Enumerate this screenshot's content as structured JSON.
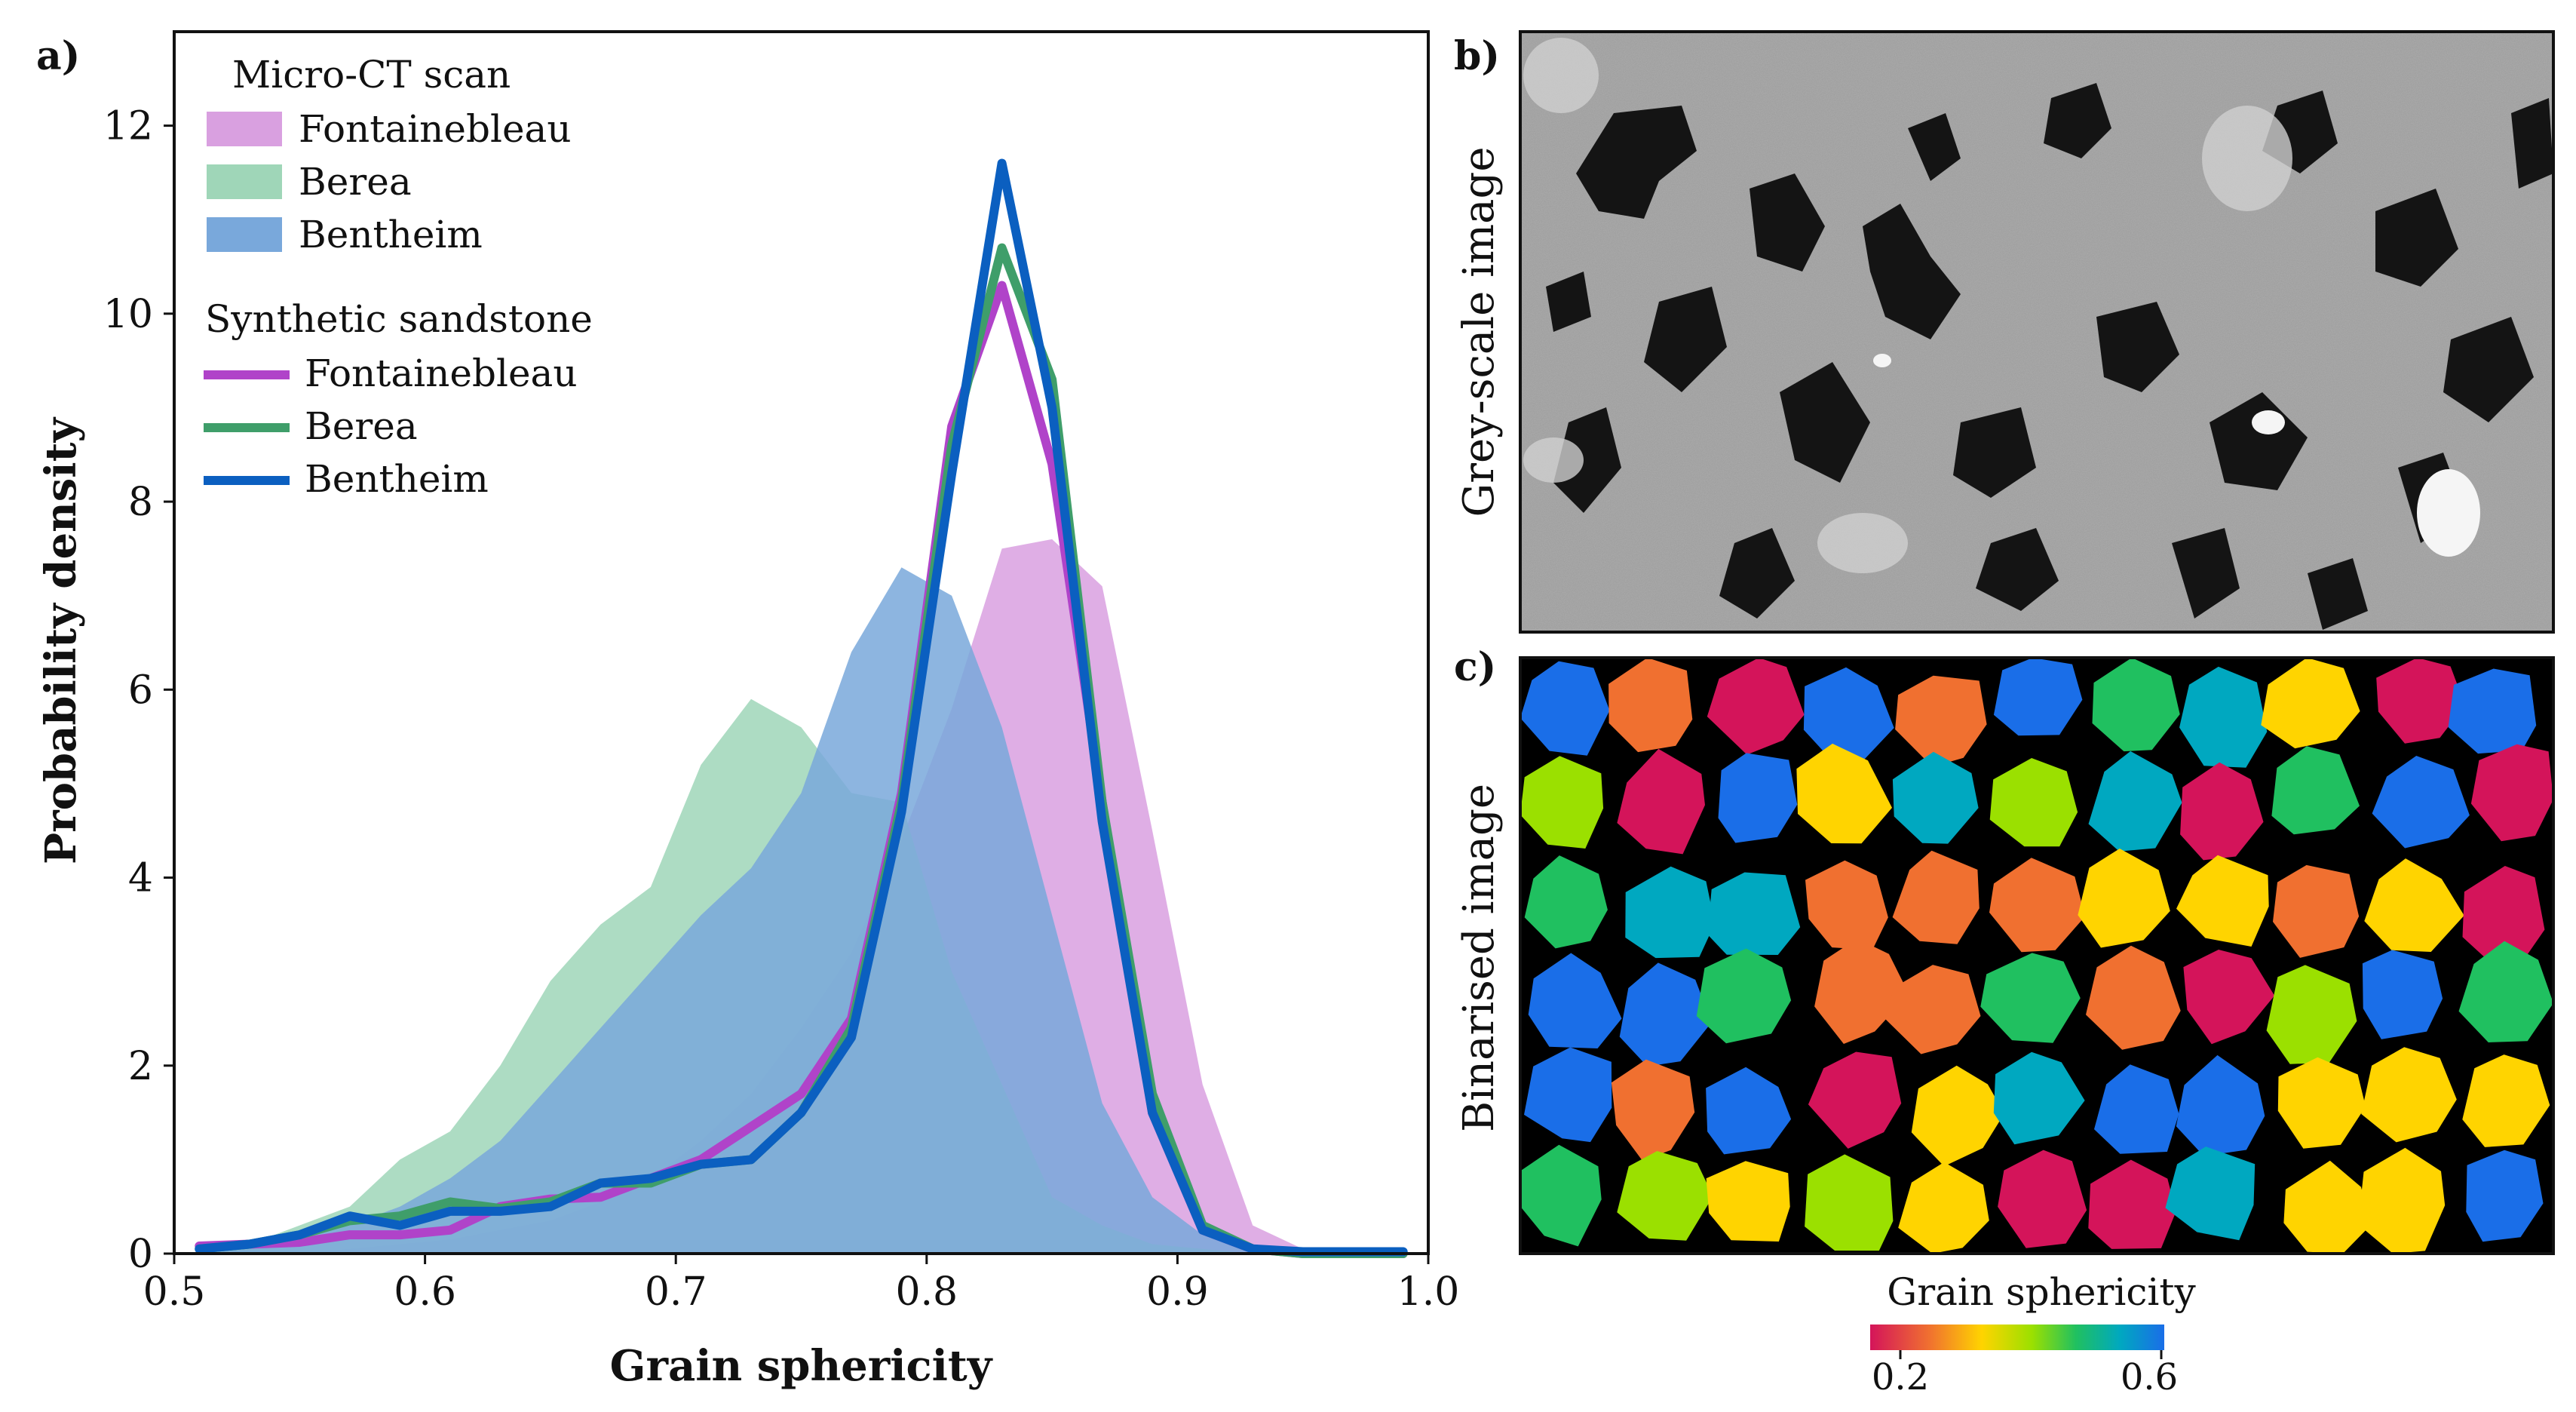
{
  "chart_data": {
    "type": "area",
    "panel_label": "a)",
    "xlabel": "Grain sphericity",
    "ylabel": "Probability density",
    "xlim": [
      0.5,
      1.0
    ],
    "ylim": [
      0,
      13
    ],
    "xticks": [
      "0.5",
      "0.6",
      "0.7",
      "0.8",
      "0.9",
      "1.0"
    ],
    "yticks": [
      "0",
      "2",
      "4",
      "6",
      "8",
      "10",
      "12"
    ],
    "x": [
      0.51,
      0.53,
      0.55,
      0.57,
      0.59,
      0.61,
      0.63,
      0.65,
      0.67,
      0.69,
      0.71,
      0.73,
      0.75,
      0.77,
      0.79,
      0.81,
      0.83,
      0.85,
      0.87,
      0.89,
      0.91,
      0.93,
      0.95,
      0.97,
      0.99
    ],
    "legend": {
      "micro_title": "Micro-CT scan",
      "synthetic_title": "Synthetic sandstone",
      "micro_entries": [
        "Fontainebleau",
        "Berea",
        "Bentheim"
      ],
      "synthetic_entries": [
        "Fontainebleau",
        "Berea",
        "Bentheim"
      ]
    },
    "series": [
      {
        "name": "Fontainebleau",
        "kind": "micro",
        "color": "#d9a0e0",
        "values": [
          0.0,
          0.0,
          0.0,
          0.05,
          0.1,
          0.15,
          0.25,
          0.35,
          0.55,
          0.8,
          1.2,
          1.7,
          2.4,
          3.2,
          4.4,
          5.8,
          7.5,
          7.6,
          7.1,
          4.5,
          1.8,
          0.3,
          0.05,
          0.0,
          0.0
        ]
      },
      {
        "name": "Berea",
        "kind": "micro",
        "color": "#9fd6b8",
        "values": [
          0.05,
          0.1,
          0.3,
          0.5,
          1.0,
          1.3,
          2.0,
          2.9,
          3.5,
          3.9,
          5.2,
          5.9,
          5.6,
          4.9,
          4.8,
          3.0,
          1.8,
          0.6,
          0.3,
          0.1,
          0.05,
          0.0,
          0.0,
          0.0,
          0.0
        ]
      },
      {
        "name": "Bentheim",
        "kind": "micro",
        "color": "#79a8db",
        "values": [
          0.0,
          0.05,
          0.15,
          0.3,
          0.5,
          0.8,
          1.2,
          1.8,
          2.4,
          3.0,
          3.6,
          4.1,
          4.9,
          6.4,
          7.3,
          7.0,
          5.6,
          3.6,
          1.6,
          0.6,
          0.2,
          0.05,
          0.0,
          0.0,
          0.0
        ]
      },
      {
        "name": "Fontainebleau",
        "kind": "synthetic",
        "color": "#b043c9",
        "values": [
          0.08,
          0.1,
          0.12,
          0.2,
          0.2,
          0.25,
          0.5,
          0.58,
          0.6,
          0.8,
          1.0,
          1.35,
          1.7,
          2.5,
          4.9,
          8.8,
          10.3,
          8.4,
          4.8,
          1.5,
          0.25,
          0.05,
          0.0,
          0.0,
          0.0
        ]
      },
      {
        "name": "Berea",
        "kind": "synthetic",
        "color": "#3f9e6a",
        "values": [
          0.05,
          0.1,
          0.2,
          0.35,
          0.4,
          0.55,
          0.48,
          0.55,
          0.75,
          0.75,
          0.95,
          1.0,
          1.5,
          2.4,
          4.8,
          8.6,
          10.7,
          9.3,
          4.8,
          1.7,
          0.3,
          0.05,
          0.0,
          0.0,
          0.0
        ]
      },
      {
        "name": "Bentheim",
        "kind": "synthetic",
        "color": "#0b5fc0",
        "values": [
          0.05,
          0.1,
          0.2,
          0.4,
          0.3,
          0.45,
          0.45,
          0.5,
          0.75,
          0.8,
          0.95,
          1.0,
          1.5,
          2.3,
          4.7,
          8.3,
          11.6,
          9.0,
          4.6,
          1.5,
          0.25,
          0.05,
          0.02,
          0.02,
          0.02
        ]
      }
    ]
  },
  "panels": {
    "b_label": "b)",
    "b_ylabel": "Grey-scale image",
    "c_label": "c)",
    "c_ylabel": "Binarised image"
  },
  "colorbar": {
    "title": "Grain sphericity",
    "min_label": "0.2",
    "max_label": "0.6",
    "colors": [
      "#d4145a",
      "#f07030",
      "#ffd400",
      "#9be000",
      "#20c060",
      "#00a8c0",
      "#1a6ee8"
    ]
  }
}
